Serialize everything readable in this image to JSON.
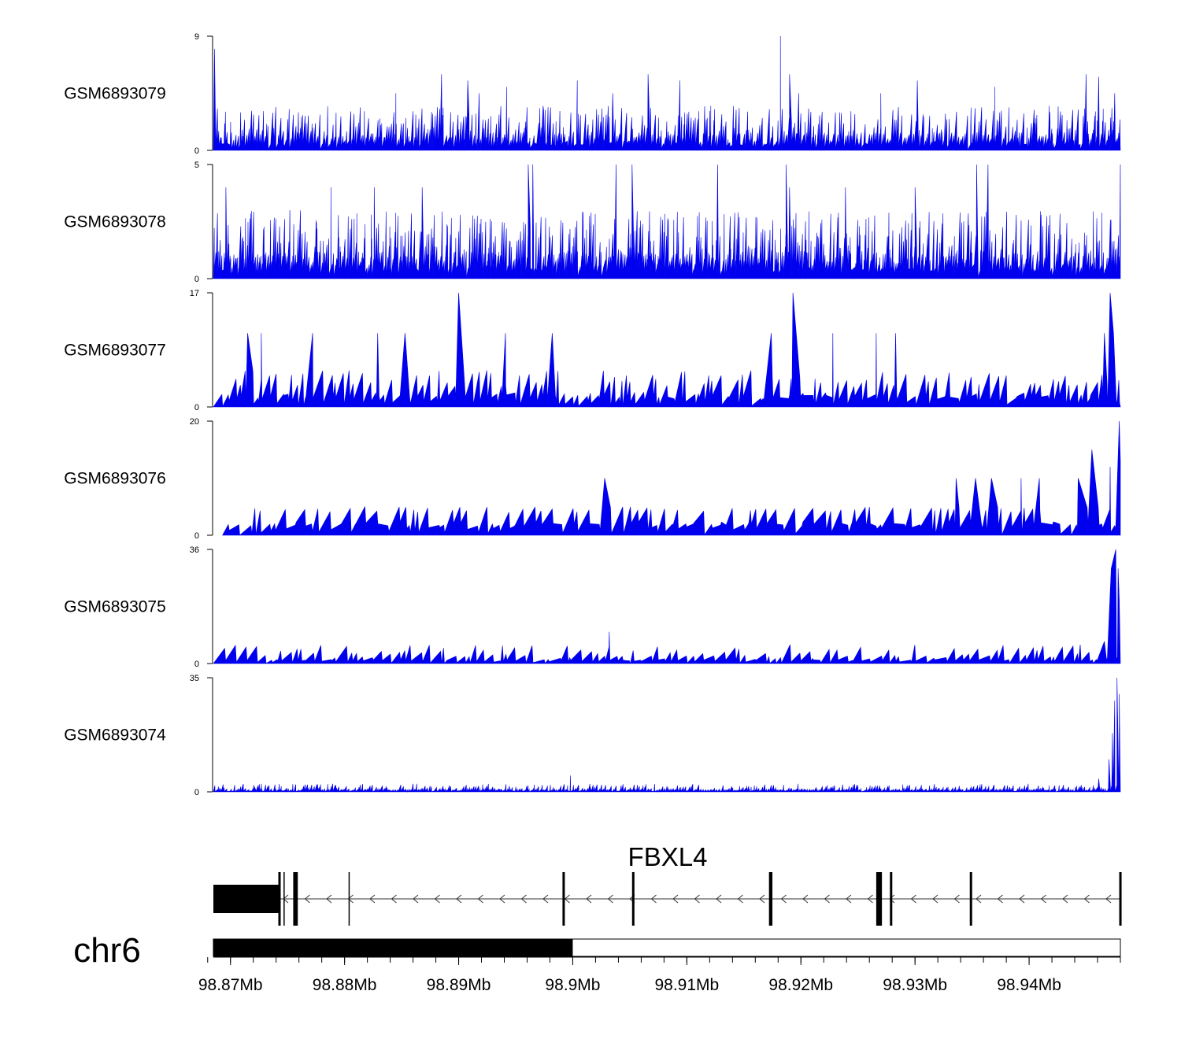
{
  "chart_data": {
    "type": "area",
    "title": "",
    "region": {
      "chromosome": "chr6",
      "start_mb": 98.8685,
      "end_mb": 98.948
    },
    "series_color": "#0000ee",
    "tracks": [
      {
        "name": "GSM6893079",
        "ymax": 9,
        "yticks": [
          "0",
          "9"
        ],
        "seed": 79,
        "peaks": [
          [
            98.8686,
            8
          ],
          [
            98.8845,
            4.5
          ],
          [
            98.8885,
            6
          ],
          [
            98.8908,
            5.5
          ],
          [
            98.8918,
            4.5
          ],
          [
            98.8942,
            5
          ],
          [
            98.8974,
            3.5
          ],
          [
            98.9004,
            5.5
          ],
          [
            98.9035,
            4.5
          ],
          [
            98.9066,
            6
          ],
          [
            98.9094,
            5.5
          ],
          [
            98.9121,
            3.5
          ],
          [
            98.9182,
            9
          ],
          [
            98.919,
            6
          ],
          [
            98.9198,
            4.5
          ],
          [
            98.9234,
            3
          ],
          [
            98.927,
            4.5
          ],
          [
            98.9302,
            5.5
          ],
          [
            98.937,
            5
          ],
          [
            98.945,
            6
          ],
          [
            98.9461,
            5.8
          ],
          [
            98.9475,
            4.5
          ]
        ],
        "bg": [
          1,
          3.5
        ],
        "step": 0.00012
      },
      {
        "name": "GSM6893078",
        "ymax": 5,
        "yticks": [
          "0",
          "5"
        ],
        "seed": 78,
        "peaks": [
          [
            98.8696,
            4
          ],
          [
            98.8752,
            3
          ],
          [
            98.8788,
            4
          ],
          [
            98.8826,
            4
          ],
          [
            98.8868,
            4
          ],
          [
            98.8961,
            5
          ],
          [
            98.8965,
            5
          ],
          [
            98.9038,
            5
          ],
          [
            98.9052,
            5
          ],
          [
            98.9127,
            5
          ],
          [
            98.9187,
            5
          ],
          [
            98.919,
            4
          ],
          [
            98.9239,
            4
          ],
          [
            98.93,
            4
          ],
          [
            98.9354,
            5
          ],
          [
            98.9364,
            5
          ],
          [
            98.948,
            5
          ]
        ],
        "bg": [
          0.8,
          3
        ],
        "step": 0.0001
      },
      {
        "name": "GSM6893077",
        "ymax": 17,
        "yticks": [
          "0",
          "17"
        ],
        "seed": 77,
        "peaks": [
          [
            98.8715,
            11
          ],
          [
            98.8727,
            11
          ],
          [
            98.8772,
            11
          ],
          [
            98.8829,
            11
          ],
          [
            98.8853,
            11
          ],
          [
            98.89,
            17
          ],
          [
            98.8941,
            11
          ],
          [
            98.8982,
            11
          ],
          [
            98.9174,
            11
          ],
          [
            98.9193,
            17
          ],
          [
            98.9228,
            11
          ],
          [
            98.9266,
            11
          ],
          [
            98.9283,
            11
          ],
          [
            98.9466,
            11
          ],
          [
            98.9471,
            17
          ],
          [
            98.9474,
            11
          ]
        ],
        "bg": [
          3,
          5.5
        ],
        "step": 0.00045
      },
      {
        "name": "GSM6893076",
        "ymax": 20,
        "yticks": [
          "0",
          "20"
        ],
        "seed": 76,
        "peaks": [
          [
            98.9028,
            10
          ],
          [
            98.9336,
            10
          ],
          [
            98.9353,
            10
          ],
          [
            98.9367,
            10
          ],
          [
            98.9393,
            10
          ],
          [
            98.9409,
            10
          ],
          [
            98.9443,
            10
          ],
          [
            98.9455,
            15
          ],
          [
            98.9471,
            12
          ],
          [
            98.9479,
            20
          ],
          [
            98.948,
            13
          ]
        ],
        "bg": [
          4,
          5
        ],
        "step": 0.00055,
        "start": 98.8693
      },
      {
        "name": "GSM6893075",
        "ymax": 36,
        "yticks": [
          "0",
          "36"
        ],
        "seed": 75,
        "peaks": [
          [
            98.9032,
            10
          ],
          [
            98.9466,
            7
          ],
          [
            98.9472,
            30
          ],
          [
            98.9476,
            36
          ],
          [
            98.9478,
            30
          ],
          [
            98.9479,
            20
          ]
        ],
        "bg": [
          2,
          6
        ],
        "step": 0.00055
      },
      {
        "name": "GSM6893074",
        "ymax": 35,
        "yticks": [
          "0",
          "35"
        ],
        "seed": 74,
        "peaks": [
          [
            98.8998,
            5
          ],
          [
            98.9461,
            4
          ],
          [
            98.947,
            10
          ],
          [
            98.9473,
            18
          ],
          [
            98.9475,
            28
          ],
          [
            98.9477,
            35
          ],
          [
            98.9479,
            30
          ]
        ],
        "bg": [
          0.5,
          2.5
        ],
        "step": 0.00012
      }
    ],
    "gene": {
      "name": "FBXL4",
      "strand": "-",
      "start_mb": 98.8685,
      "end_mb": 98.948,
      "exons_mb": [
        [
          98.8685,
          98.8744
        ],
        [
          98.8755,
          98.8759
        ],
        [
          98.8991,
          98.8993
        ],
        [
          98.9052,
          98.9054
        ],
        [
          98.9172,
          98.9175
        ],
        [
          98.9266,
          98.9271
        ],
        [
          98.9278,
          98.9279
        ],
        [
          98.9348,
          98.9349
        ],
        [
          98.9479,
          98.948
        ]
      ],
      "tick_mb": [
        98.8747,
        98.8804
      ]
    },
    "ideogram": {
      "filled_start_mb": 98.8685,
      "filled_end_mb": 98.9,
      "end_mb": 98.948
    },
    "xaxis": {
      "ticks": [
        "98.87Mb",
        "98.88Mb",
        "98.89Mb",
        "98.9Mb",
        "98.91Mb",
        "98.92Mb",
        "98.93Mb",
        "98.94Mb"
      ],
      "tick_values": [
        98.87,
        98.88,
        98.89,
        98.9,
        98.91,
        98.92,
        98.93,
        98.94
      ],
      "minor_step": 0.002
    },
    "chromosome_label": "chr6"
  }
}
